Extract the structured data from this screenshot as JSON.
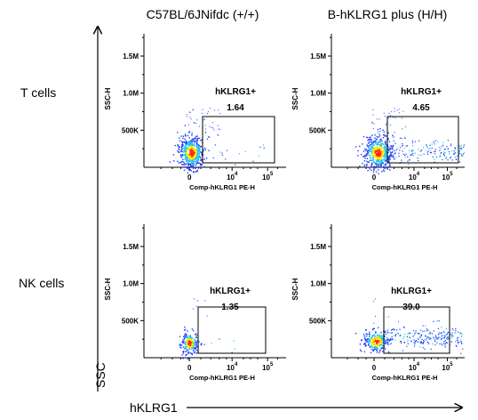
{
  "figure": {
    "col_headers": [
      "C57BL/6JNifdc (+/+)",
      "B-hKLRG1 plus (H/H)"
    ],
    "row_labels": [
      "T cells",
      "NK cells"
    ],
    "y_axis_label": "SSC",
    "x_axis_label": "hKLRG1",
    "colors": {
      "axes": "#000000",
      "gate": "#000000",
      "density_low": "#1f3cff",
      "density_mid": "#19c8e6",
      "density_high": "#ffe100",
      "density_peak": "#ff2a00"
    }
  },
  "chart_data": [
    {
      "type": "scatter",
      "row": "T cells",
      "column": "C57BL/6JNifdc (+/+)",
      "xlabel": "Comp-hKLRG1 PE-H",
      "ylabel": "SSC-H",
      "xticks": [
        "0",
        "10^4",
        "10^5"
      ],
      "yticks": [
        "500K",
        "1.0M",
        "1.5M"
      ],
      "ylim": [
        0,
        1800000
      ],
      "gate": {
        "name": "hKLRG1+",
        "percent": "1.64"
      },
      "population": "compact cluster at low hKLRG1, few events in gate"
    },
    {
      "type": "scatter",
      "row": "T cells",
      "column": "B-hKLRG1 plus (H/H)",
      "xlabel": "Comp-hKLRG1 PE-H",
      "ylabel": "SSC-H",
      "xticks": [
        "0",
        "10^4",
        "10^5"
      ],
      "yticks": [
        "500K",
        "1.0M",
        "1.5M"
      ],
      "ylim": [
        0,
        1800000
      ],
      "gate": {
        "name": "hKLRG1+",
        "percent": "4.65"
      },
      "population": "main cluster at low hKLRG1 with a tail extending into the gate"
    },
    {
      "type": "scatter",
      "row": "NK cells",
      "column": "C57BL/6JNifdc (+/+)",
      "xlabel": "Comp-hKLRG1 PE-H",
      "ylabel": "SSC-H",
      "xticks": [
        "0",
        "10^4",
        "10^5"
      ],
      "yticks": [
        "500K",
        "1.0M",
        "1.5M"
      ],
      "ylim": [
        0,
        1800000
      ],
      "gate": {
        "name": "hKLRG1+",
        "percent": "1.35"
      },
      "population": "small low-SSC cluster at low hKLRG1"
    },
    {
      "type": "scatter",
      "row": "NK cells",
      "column": "B-hKLRG1 plus (H/H)",
      "xlabel": "Comp-hKLRG1 PE-H",
      "ylabel": "SSC-H",
      "xticks": [
        "0",
        "10^4",
        "10^5"
      ],
      "yticks": [
        "500K",
        "1.0M",
        "1.5M"
      ],
      "ylim": [
        0,
        1800000
      ],
      "gate": {
        "name": "hKLRG1+",
        "percent": "39.0"
      },
      "population": "low-SSC events spread broadly into the hKLRG1+ gate"
    }
  ]
}
